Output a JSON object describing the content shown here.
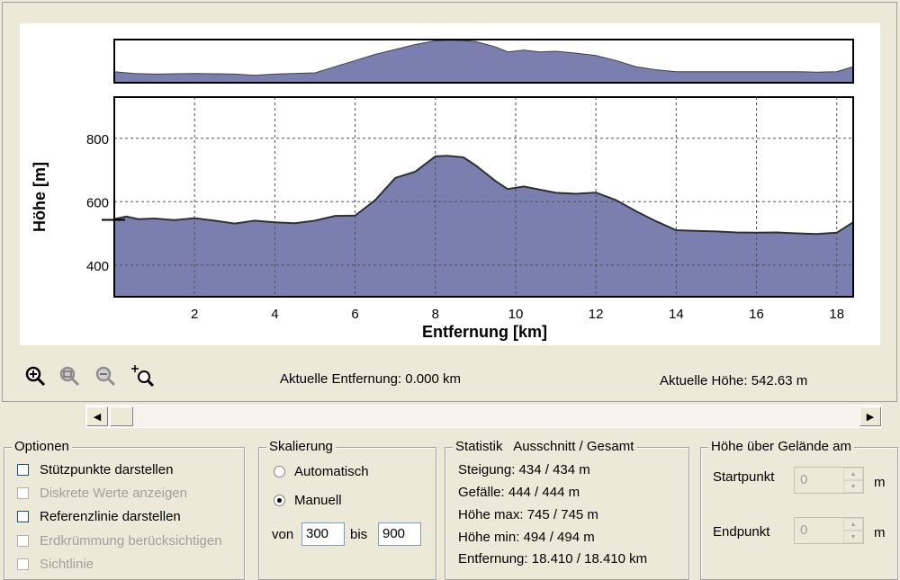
{
  "chart_data": {
    "type": "area",
    "xlabel": "Entfernung [km]",
    "ylabel": "Höhe [m]",
    "xlim": [
      0,
      18.41
    ],
    "ylim": [
      300,
      930
    ],
    "xticks": [
      2,
      4,
      6,
      8,
      10,
      12,
      14,
      16,
      18
    ],
    "yticks": [
      400,
      600,
      800
    ],
    "grid": true,
    "fill_color": "#7a7fb0",
    "line_color": "#303030",
    "reference_line_height": 542.63,
    "x": [
      0,
      0.3,
      0.6,
      1,
      1.5,
      2,
      2.5,
      3,
      3.5,
      4,
      4.5,
      5,
      5.5,
      6,
      6.5,
      7,
      7.5,
      8,
      8.3,
      8.7,
      9,
      9.5,
      9.8,
      10.2,
      10.6,
      11,
      11.5,
      12,
      12.5,
      13,
      13.5,
      14,
      14.5,
      15,
      15.5,
      16,
      16.5,
      17,
      17.5,
      18,
      18.41
    ],
    "y": [
      545,
      553,
      545,
      547,
      542,
      548,
      540,
      531,
      540,
      535,
      532,
      540,
      555,
      556,
      605,
      675,
      695,
      743,
      745,
      740,
      715,
      665,
      640,
      648,
      638,
      628,
      625,
      629,
      605,
      570,
      538,
      510,
      508,
      506,
      503,
      502,
      503,
      500,
      498,
      502,
      535
    ]
  },
  "overview": {
    "x": [
      0,
      0.5,
      1,
      2,
      3,
      3.5,
      4,
      5,
      5.5,
      6,
      6.5,
      7,
      7.5,
      8,
      8.3,
      8.7,
      9,
      9.5,
      9.8,
      10.2,
      10.6,
      11,
      11.5,
      12,
      12.5,
      13,
      13.5,
      14,
      15,
      16,
      17,
      17.5,
      18,
      18.41
    ],
    "y": [
      560,
      545,
      540,
      545,
      540,
      530,
      540,
      550,
      600,
      650,
      700,
      740,
      780,
      810,
      815,
      812,
      805,
      760,
      720,
      735,
      720,
      725,
      710,
      690,
      650,
      600,
      575,
      560,
      560,
      560,
      560,
      555,
      560,
      600
    ]
  },
  "toolbar": {
    "icons": [
      "zoom-in-icon",
      "zoom-window-icon",
      "zoom-out-icon",
      "zoom-extents-icon"
    ]
  },
  "status": {
    "distance_text": "Aktuelle Entfernung: 0.000 km",
    "height_text": "Aktuelle Höhe: 542.63 m"
  },
  "options": {
    "title": "Optionen",
    "items": [
      {
        "label": "Stützpunkte darstellen",
        "enabled": true,
        "checked": false
      },
      {
        "label": "Diskrete Werte anzeigen",
        "enabled": false,
        "checked": false
      },
      {
        "label": "Referenzlinie darstellen",
        "enabled": true,
        "checked": false
      },
      {
        "label": "Erdkrümmung berücksichtigen",
        "enabled": false,
        "checked": false
      },
      {
        "label": "Sichtlinie",
        "enabled": false,
        "checked": false
      }
    ]
  },
  "scaling": {
    "title": "Skalierung",
    "auto_label": "Automatisch",
    "manual_label": "Manuell",
    "selected": "Manuell",
    "from_label": "von",
    "from_value": "300",
    "to_label": "bis",
    "to_value": "900"
  },
  "statistics": {
    "title": "Statistik   Ausschnitt / Gesamt",
    "lines": [
      "Steigung: 434 / 434 m",
      "Gefälle: 444 / 444 m",
      "Höhe max: 745 / 745 m",
      "Höhe min: 494 / 494 m",
      "Entfernung: 18.410 / 18.410 km"
    ]
  },
  "terrain": {
    "title": "Höhe über Gelände am",
    "start_label": "Startpunkt",
    "start_value": "0",
    "end_label": "Endpunkt",
    "end_value": "0",
    "unit": "m"
  }
}
